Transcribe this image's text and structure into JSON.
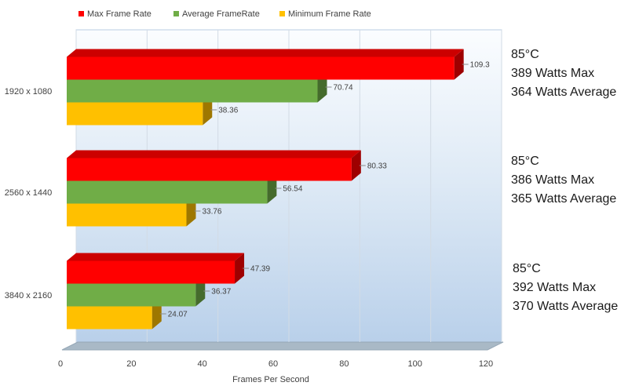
{
  "chart_data": {
    "type": "bar",
    "orientation": "horizontal",
    "categories": [
      "1920 x 1080",
      "2560 x 1440",
      "3840 x 2160"
    ],
    "series": [
      {
        "name": "Max Frame Rate",
        "color": "#ff0000",
        "values": [
          109.3,
          80.33,
          47.39
        ]
      },
      {
        "name": "Average FrameRate",
        "color": "#70ad47",
        "values": [
          70.74,
          56.54,
          36.37
        ]
      },
      {
        "name": "Minimum Frame Rate",
        "color": "#ffc000",
        "values": [
          38.36,
          33.76,
          24.07
        ]
      }
    ],
    "value_labels": [
      [
        "109.3",
        "80.33",
        "47.39"
      ],
      [
        "70.74",
        "56.54",
        "36.37"
      ],
      [
        "38.36",
        "33.76",
        "24.07"
      ]
    ],
    "xlabel": "Frames Per Second",
    "xlim": [
      0,
      120
    ],
    "xticks": [
      "0",
      "20",
      "40",
      "60",
      "80",
      "100",
      "120"
    ],
    "legend_position": "top",
    "grid": true,
    "style": "3d"
  },
  "annotations": [
    [
      "85°C",
      "389 Watts Max",
      "364 Watts Average"
    ],
    [
      "85°C",
      "386 Watts Max",
      "365 Watts Average"
    ],
    [
      "85°C",
      "392 Watts Max",
      "370 Watts Average"
    ]
  ]
}
